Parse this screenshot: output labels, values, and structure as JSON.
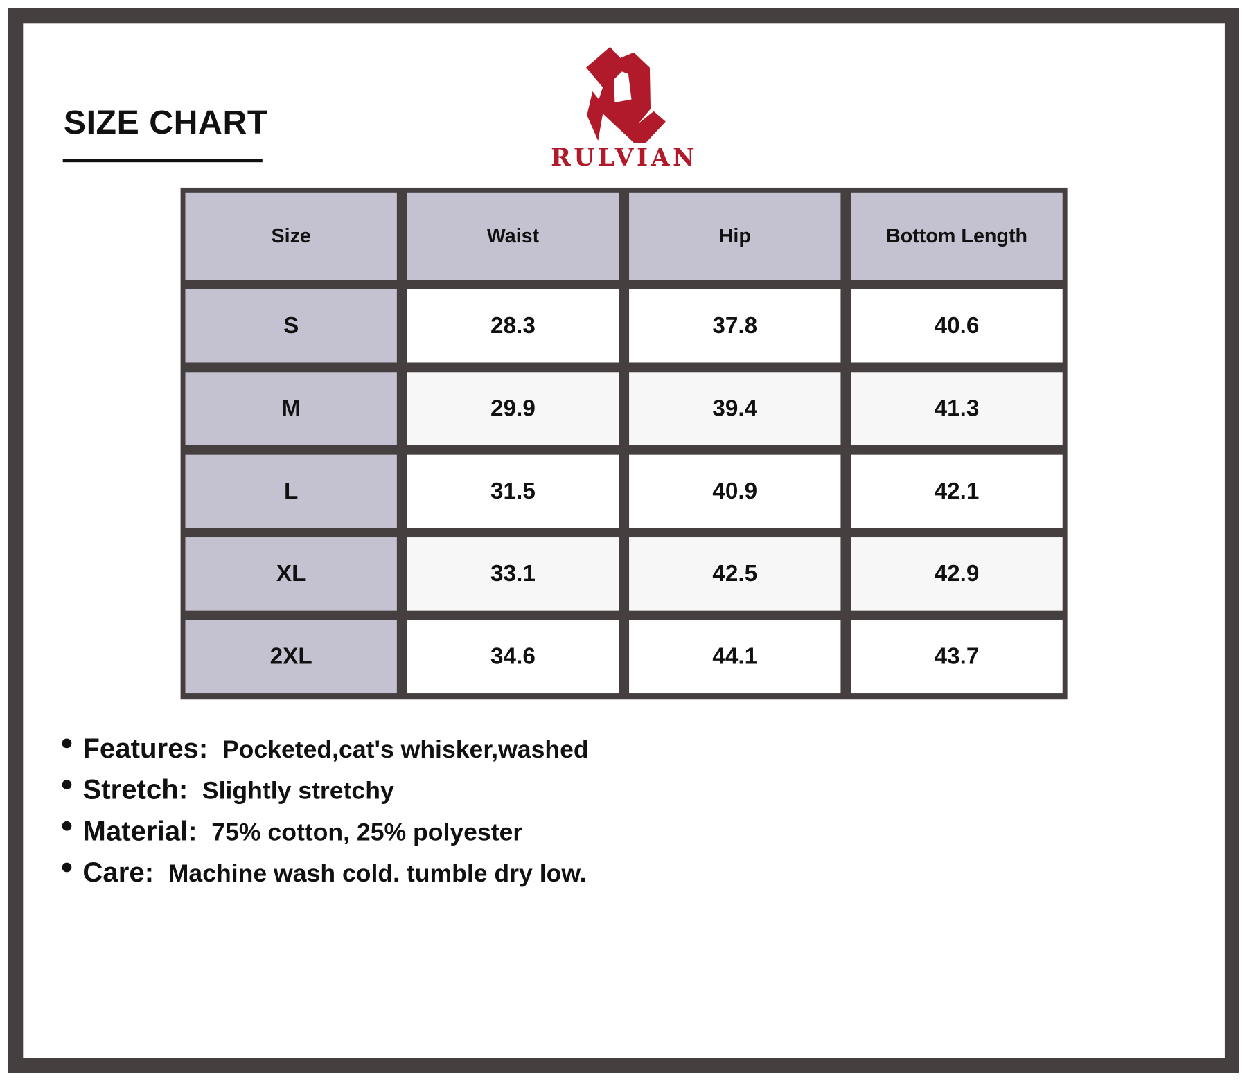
{
  "title": "SIZE CHART",
  "brand": {
    "name": "RULVIAN",
    "color": "#b01a2a",
    "logo_icon": "stylized-r-logo"
  },
  "table": {
    "headers": [
      "Size",
      "Waist",
      "Hip",
      "Bottom Length"
    ],
    "rows": [
      [
        "S",
        "28.3",
        "37.8",
        "40.6"
      ],
      [
        "M",
        "29.9",
        "39.4",
        "41.3"
      ],
      [
        "L",
        "31.5",
        "40.9",
        "42.1"
      ],
      [
        "XL",
        "33.1",
        "42.5",
        "42.9"
      ],
      [
        "2XL",
        "34.6",
        "44.1",
        "43.7"
      ]
    ]
  },
  "details": [
    {
      "label": "Features:",
      "value": "Pocketed,cat's whisker,washed"
    },
    {
      "label": "Stretch:",
      "value": "Slightly stretchy"
    },
    {
      "label": "Material:",
      "value": "75% cotton, 25% polyester"
    },
    {
      "label": "Care:",
      "value": "Machine wash cold. tumble dry low."
    }
  ],
  "colors": {
    "frame": "#463f3f",
    "header_bg": "#c4c2d0",
    "alt_row": "#f7f7f7"
  }
}
